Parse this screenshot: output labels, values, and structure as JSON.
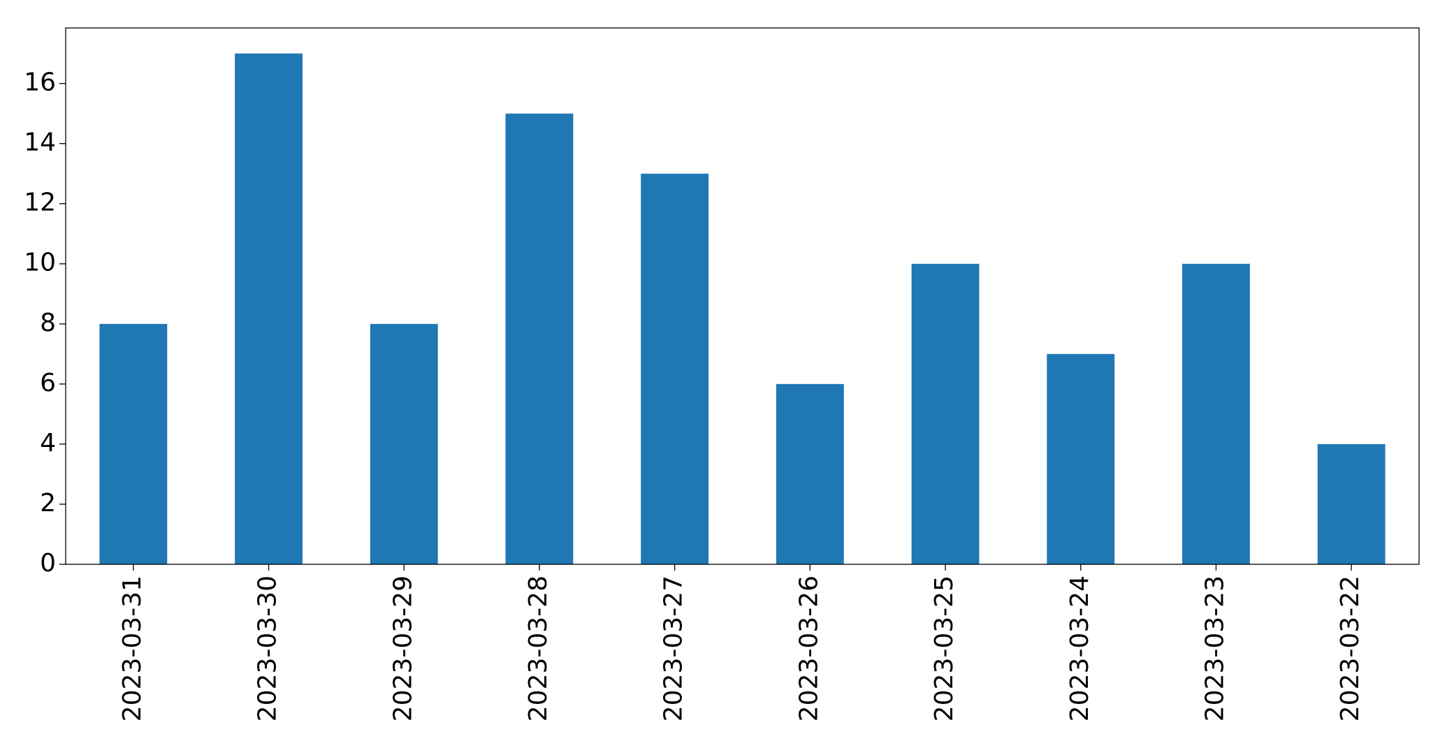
{
  "chart_data": {
    "type": "bar",
    "categories": [
      "2023-03-31",
      "2023-03-30",
      "2023-03-29",
      "2023-03-28",
      "2023-03-27",
      "2023-03-26",
      "2023-03-25",
      "2023-03-24",
      "2023-03-23",
      "2023-03-22"
    ],
    "values": [
      8,
      17,
      8,
      15,
      13,
      6,
      10,
      7,
      10,
      4
    ],
    "color": "#1f77b4",
    "ylim": [
      0,
      17.85
    ],
    "yticks": [
      0,
      2,
      4,
      6,
      8,
      10,
      12,
      14,
      16
    ],
    "grid": false
  }
}
